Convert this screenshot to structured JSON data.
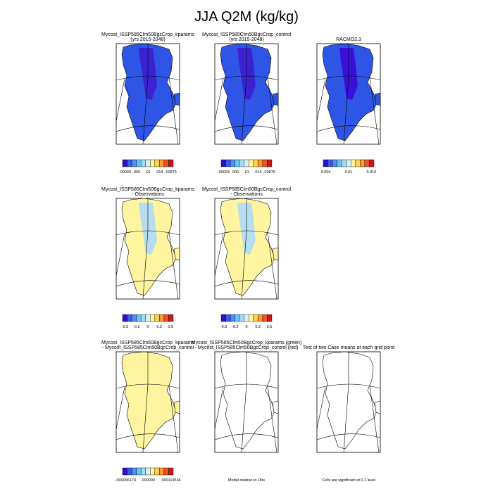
{
  "title": "JJA Q2M (kg/kg)",
  "rows": [
    [
      {
        "title": [
          "Mycost_ISSP585Clm50BgcCrop_kparams",
          "(yrs 2015-2048)"
        ],
        "map_fill": "#2f55e6",
        "map_inner": "#3a22d0",
        "colorbar": {
          "colors": [
            "#2a12c8",
            "#3a5ae8",
            "#4f8ef2",
            "#6cc3f5",
            "#a6dcf2",
            "#d8f0f0",
            "#fff5a0",
            "#ffd24a",
            "#ff9a2e",
            "#f0502a",
            "#c81818"
          ],
          "labels": [
            ".00003",
            ".006",
            ".01",
            ".014",
            ".02875"
          ]
        }
      },
      {
        "title": [
          "Mycost_ISSP585Clm50BgcCrop_control",
          "(yrs 2015-2048)"
        ],
        "map_fill": "#2f55e6",
        "map_inner": "#3a22d0",
        "colorbar": {
          "colors": [
            "#2a12c8",
            "#3a5ae8",
            "#4f8ef2",
            "#6cc3f5",
            "#a6dcf2",
            "#d8f0f0",
            "#fff5a0",
            "#ffd24a",
            "#ff9a2e",
            "#f0502a",
            "#c81818"
          ],
          "labels": [
            ".00003",
            ".006",
            ".01",
            ".014",
            ".02875"
          ]
        }
      },
      {
        "title": [
          "RACMO2.3"
        ],
        "map_fill": "#2f55e6",
        "map_inner": "#3a10d8",
        "colorbar": {
          "colors": [
            "#2a12c8",
            "#3a5ae8",
            "#4f8ef2",
            "#6cc3f5",
            "#a6dcf2",
            "#d8f0f0",
            "#fff5a0",
            "#ffd24a",
            "#ff9a2e",
            "#f0502a",
            "#c81818"
          ],
          "labels": [
            "0.004",
            "0.01",
            "0.016"
          ]
        }
      }
    ],
    [
      {
        "title": [
          "Mycost_ISSP585Clm50BgcCrop_kparams",
          "- Observations"
        ],
        "map_fill": "#fff5a0",
        "map_inner": "#b8ddf0",
        "colorbar": {
          "colors": [
            "#2a12c8",
            "#3a5ae8",
            "#4f8ef2",
            "#6cc3f5",
            "#a6dcf2",
            "#d8f0f0",
            "#fff5a0",
            "#ffd24a",
            "#ff9a2e",
            "#f0502a",
            "#c81818"
          ],
          "labels": [
            "-0.5",
            "-0.2",
            "0",
            "0.2",
            "0.5"
          ]
        }
      },
      {
        "title": [
          "Mycost_ISSP585Clm50BgcCrop_control",
          "- Observations"
        ],
        "map_fill": "#fff5a0",
        "map_inner": "#b8ddf0",
        "colorbar": {
          "colors": [
            "#2a12c8",
            "#3a5ae8",
            "#4f8ef2",
            "#6cc3f5",
            "#a6dcf2",
            "#d8f0f0",
            "#fff5a0",
            "#ffd24a",
            "#ff9a2e",
            "#f0502a",
            "#c81818"
          ],
          "labels": [
            "-0.5",
            "-0.2",
            "0",
            "0.2",
            "0.5"
          ]
        }
      }
    ],
    [
      {
        "title": [
          "Mycost_ISSP585Clm50BgcCrop_kparams",
          "- Mycost_ISSP585Clm50BgcCrop_control"
        ],
        "map_fill": "#fff5a0",
        "map_inner": "#fff5a0",
        "colorbar": {
          "colors": [
            "#2a12c8",
            "#3a5ae8",
            "#4f8ef2",
            "#6cc3f5",
            "#a6dcf2",
            "#d8f0f0",
            "#fff5a0",
            "#ffd24a",
            "#ff9a2e",
            "#f0502a",
            "#c81818"
          ],
          "labels": [
            "-.000096174",
            ".000000",
            ".000119634"
          ]
        }
      },
      {
        "title": [
          "Mycost_ISSP585Clm50BgcCrop_kparams (green)",
          "- Mycost_ISSP585Clm50BgcCrop_control (red)"
        ],
        "map_fill": "#ffffff",
        "map_inner": "#ffffff",
        "caption": "Model relative to Obs"
      },
      {
        "title": [
          "Test of two Case means at each grid point"
        ],
        "map_fill": "#ffffff",
        "map_inner": "#ffffff",
        "caption": "Cells are significant at 0.1 level"
      }
    ]
  ]
}
